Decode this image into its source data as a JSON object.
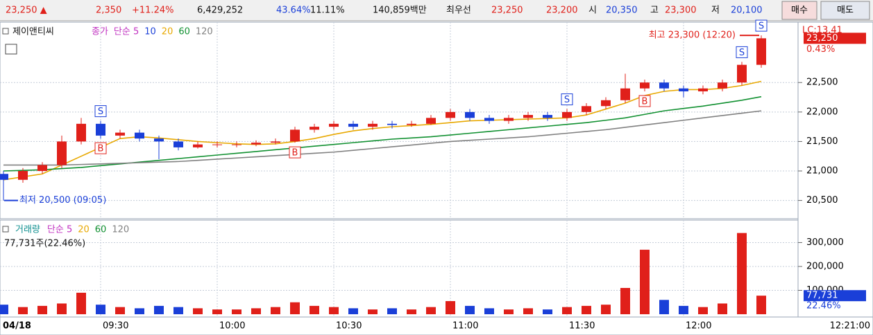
{
  "quote_bar": [
    {
      "text": "23,250 ▲",
      "color": "#e0201a"
    },
    {
      "text": "2,350",
      "color": "#e0201a"
    },
    {
      "text": "+11.24%",
      "color": "#e0201a"
    },
    {
      "text": "6,429,252",
      "color": "#111111"
    },
    {
      "text": "43.64%",
      "color": "#1a3fd8"
    },
    {
      "text": "11.11%",
      "color": "#111111"
    },
    {
      "text": "140,859백만",
      "color": "#111111"
    },
    {
      "text": "최우선",
      "color": "#111111"
    },
    {
      "text": "23,250",
      "color": "#e0201a"
    },
    {
      "text": "23,200",
      "color": "#e0201a"
    },
    {
      "text": "시",
      "color": "#111111"
    },
    {
      "text": "20,350",
      "color": "#1a3fd8"
    },
    {
      "text": "고",
      "color": "#111111"
    },
    {
      "text": "23,300",
      "color": "#e0201a"
    },
    {
      "text": "저",
      "color": "#111111"
    },
    {
      "text": "20,100",
      "color": "#1a3fd8"
    }
  ],
  "buttons": [
    "매수",
    "매도"
  ],
  "time_label": "12:21:00",
  "chart_data": [
    {
      "type": "candlestick",
      "title": "제이앤티씨",
      "legend": [
        {
          "text": "종가",
          "color": "#c030c0"
        },
        {
          "text": "단순 5",
          "color": "#c030c0"
        },
        {
          "text": "10",
          "color": "#1a3fd8"
        },
        {
          "text": "20",
          "color": "#e8a800"
        },
        {
          "text": "60",
          "color": "#109030"
        },
        {
          "text": "120",
          "color": "#808080"
        }
      ],
      "up_color": "#e0201a",
      "down_color": "#1a3fd8",
      "categories": [
        null,
        null,
        null,
        null,
        null,
        null,
        null,
        null,
        null,
        null,
        null,
        null,
        null,
        null,
        null,
        null,
        null,
        null,
        null,
        null,
        null,
        null,
        null,
        null,
        null,
        null,
        null,
        null,
        null,
        null,
        null,
        null,
        null,
        null,
        null,
        null,
        null,
        null,
        null,
        null
      ],
      "open": [
        20950,
        20850,
        21000,
        21100,
        21500,
        21800,
        21600,
        21650,
        21550,
        21500,
        21400,
        21450,
        21450,
        21450,
        21480,
        21500,
        21700,
        21750,
        21800,
        21750,
        21800,
        21780,
        21800,
        21900,
        22000,
        21900,
        21850,
        21900,
        21950,
        21900,
        22000,
        22100,
        22200,
        22400,
        22500,
        22400,
        22350,
        22400,
        22500,
        22800
      ],
      "high": [
        21000,
        21050,
        21150,
        21600,
        21900,
        21850,
        21700,
        21700,
        21600,
        21550,
        21500,
        21500,
        21500,
        21520,
        21550,
        21750,
        21800,
        21850,
        21850,
        21850,
        21850,
        21850,
        21950,
        22050,
        22050,
        21950,
        21950,
        22000,
        22000,
        22050,
        22150,
        22250,
        22650,
        22550,
        22550,
        22450,
        22450,
        22550,
        22850,
        23300
      ],
      "low": [
        20500,
        20800,
        20950,
        21050,
        21450,
        21550,
        21550,
        21500,
        21200,
        21350,
        21380,
        21400,
        21400,
        21420,
        21450,
        21480,
        21650,
        21700,
        21700,
        21700,
        21720,
        21750,
        21780,
        21850,
        21850,
        21800,
        21800,
        21850,
        21850,
        21850,
        21950,
        22050,
        22150,
        22350,
        22350,
        22250,
        22300,
        22350,
        22450,
        22750
      ],
      "close": [
        20850,
        21000,
        21100,
        21500,
        21800,
        21600,
        21650,
        21550,
        21500,
        21400,
        21450,
        21450,
        21450,
        21480,
        21500,
        21700,
        21750,
        21800,
        21750,
        21800,
        21780,
        21800,
        21900,
        22000,
        21900,
        21850,
        21900,
        21950,
        21900,
        22000,
        22100,
        22200,
        22400,
        22500,
        22400,
        22350,
        22400,
        22500,
        22800,
        23250
      ],
      "series": [
        {
          "name": "20",
          "color": "#e8a800",
          "values": [
            20850,
            20900,
            20950,
            21100,
            21250,
            21400,
            21550,
            21580,
            21560,
            21530,
            21500,
            21480,
            21460,
            21450,
            21460,
            21500,
            21550,
            21620,
            21680,
            21720,
            21750,
            21770,
            21790,
            21820,
            21850,
            21860,
            21870,
            21880,
            21890,
            21900,
            21950,
            22050,
            22150,
            22280,
            22350,
            22380,
            22380,
            22400,
            22450,
            22520
          ]
        },
        {
          "name": "60",
          "color": "#109030",
          "values": [
            21000,
            21010,
            21020,
            21040,
            21060,
            21090,
            21120,
            21150,
            21180,
            21210,
            21240,
            21270,
            21300,
            21330,
            21360,
            21390,
            21420,
            21450,
            21480,
            21510,
            21540,
            21560,
            21580,
            21610,
            21640,
            21670,
            21700,
            21730,
            21760,
            21790,
            21820,
            21860,
            21900,
            21960,
            22020,
            22060,
            22100,
            22150,
            22200,
            22260
          ]
        },
        {
          "name": "120",
          "color": "#808080",
          "values": [
            21100,
            21100,
            21100,
            21100,
            21110,
            21120,
            21130,
            21140,
            21150,
            21160,
            21180,
            21200,
            21220,
            21240,
            21260,
            21280,
            21300,
            21320,
            21350,
            21380,
            21410,
            21440,
            21470,
            21500,
            21520,
            21540,
            21560,
            21580,
            21610,
            21640,
            21670,
            21700,
            21740,
            21780,
            21820,
            21860,
            21900,
            21940,
            21980,
            22020
          ]
        }
      ],
      "signals": [
        {
          "index": 5,
          "label": "S"
        },
        {
          "index": 5,
          "label": "B"
        },
        {
          "index": 15,
          "label": "B"
        },
        {
          "index": 29,
          "label": "S"
        },
        {
          "index": 33,
          "label": "B"
        },
        {
          "index": 38,
          "label": "S"
        },
        {
          "index": 39,
          "label": "S"
        }
      ],
      "annotations": [
        "최고 23,300 (12:20)",
        "최저 20,500 (09:05)"
      ],
      "last_price": {
        "value": 23250,
        "label": "23,250"
      },
      "last_change": "0.43%",
      "lc_label": "LC:13.41",
      "ylim": [
        20190,
        23524
      ],
      "yticks": [
        {
          "value": 20500,
          "label": "20,500"
        },
        {
          "value": 21000,
          "label": "21,000"
        },
        {
          "value": 21500,
          "label": "21,500"
        },
        {
          "value": 22000,
          "label": "22,000"
        },
        {
          "value": 22500,
          "label": "22,500"
        }
      ],
      "xticks": [
        {
          "value": 0,
          "label": "04/18"
        },
        {
          "value": 5,
          "label": "09:30"
        },
        {
          "value": 11,
          "label": "10:00"
        },
        {
          "value": 17,
          "label": "10:30"
        },
        {
          "value": 23,
          "label": "11:00"
        },
        {
          "value": 29,
          "label": "11:30"
        },
        {
          "value": 35,
          "label": "12:00"
        }
      ],
      "grid": true
    },
    {
      "type": "bar",
      "title": "거래량",
      "legend": [
        {
          "text": "단순 5",
          "color": "#c030c0"
        },
        {
          "text": "20",
          "color": "#e8a800"
        },
        {
          "text": "60",
          "color": "#109030"
        },
        {
          "text": "120",
          "color": "#808080"
        }
      ],
      "subtitle": "77,731주(22.46%)",
      "values": [
        40000,
        30000,
        35000,
        45000,
        90000,
        40000,
        30000,
        25000,
        35000,
        30000,
        25000,
        20000,
        20000,
        25000,
        30000,
        50000,
        35000,
        30000,
        25000,
        20000,
        25000,
        20000,
        30000,
        55000,
        35000,
        25000,
        20000,
        25000,
        20000,
        30000,
        35000,
        40000,
        110000,
        270000,
        60000,
        35000,
        30000,
        45000,
        340000,
        77731
      ],
      "last_value": {
        "value": 77731,
        "label": "77,731"
      },
      "last_ratio": "22.46%",
      "ylim": [
        0,
        394000
      ],
      "yticks": [
        {
          "value": 100000,
          "label": "100,000"
        },
        {
          "value": 200000,
          "label": "200,000"
        },
        {
          "value": 300000,
          "label": "300,000"
        }
      ],
      "grid": true
    }
  ]
}
